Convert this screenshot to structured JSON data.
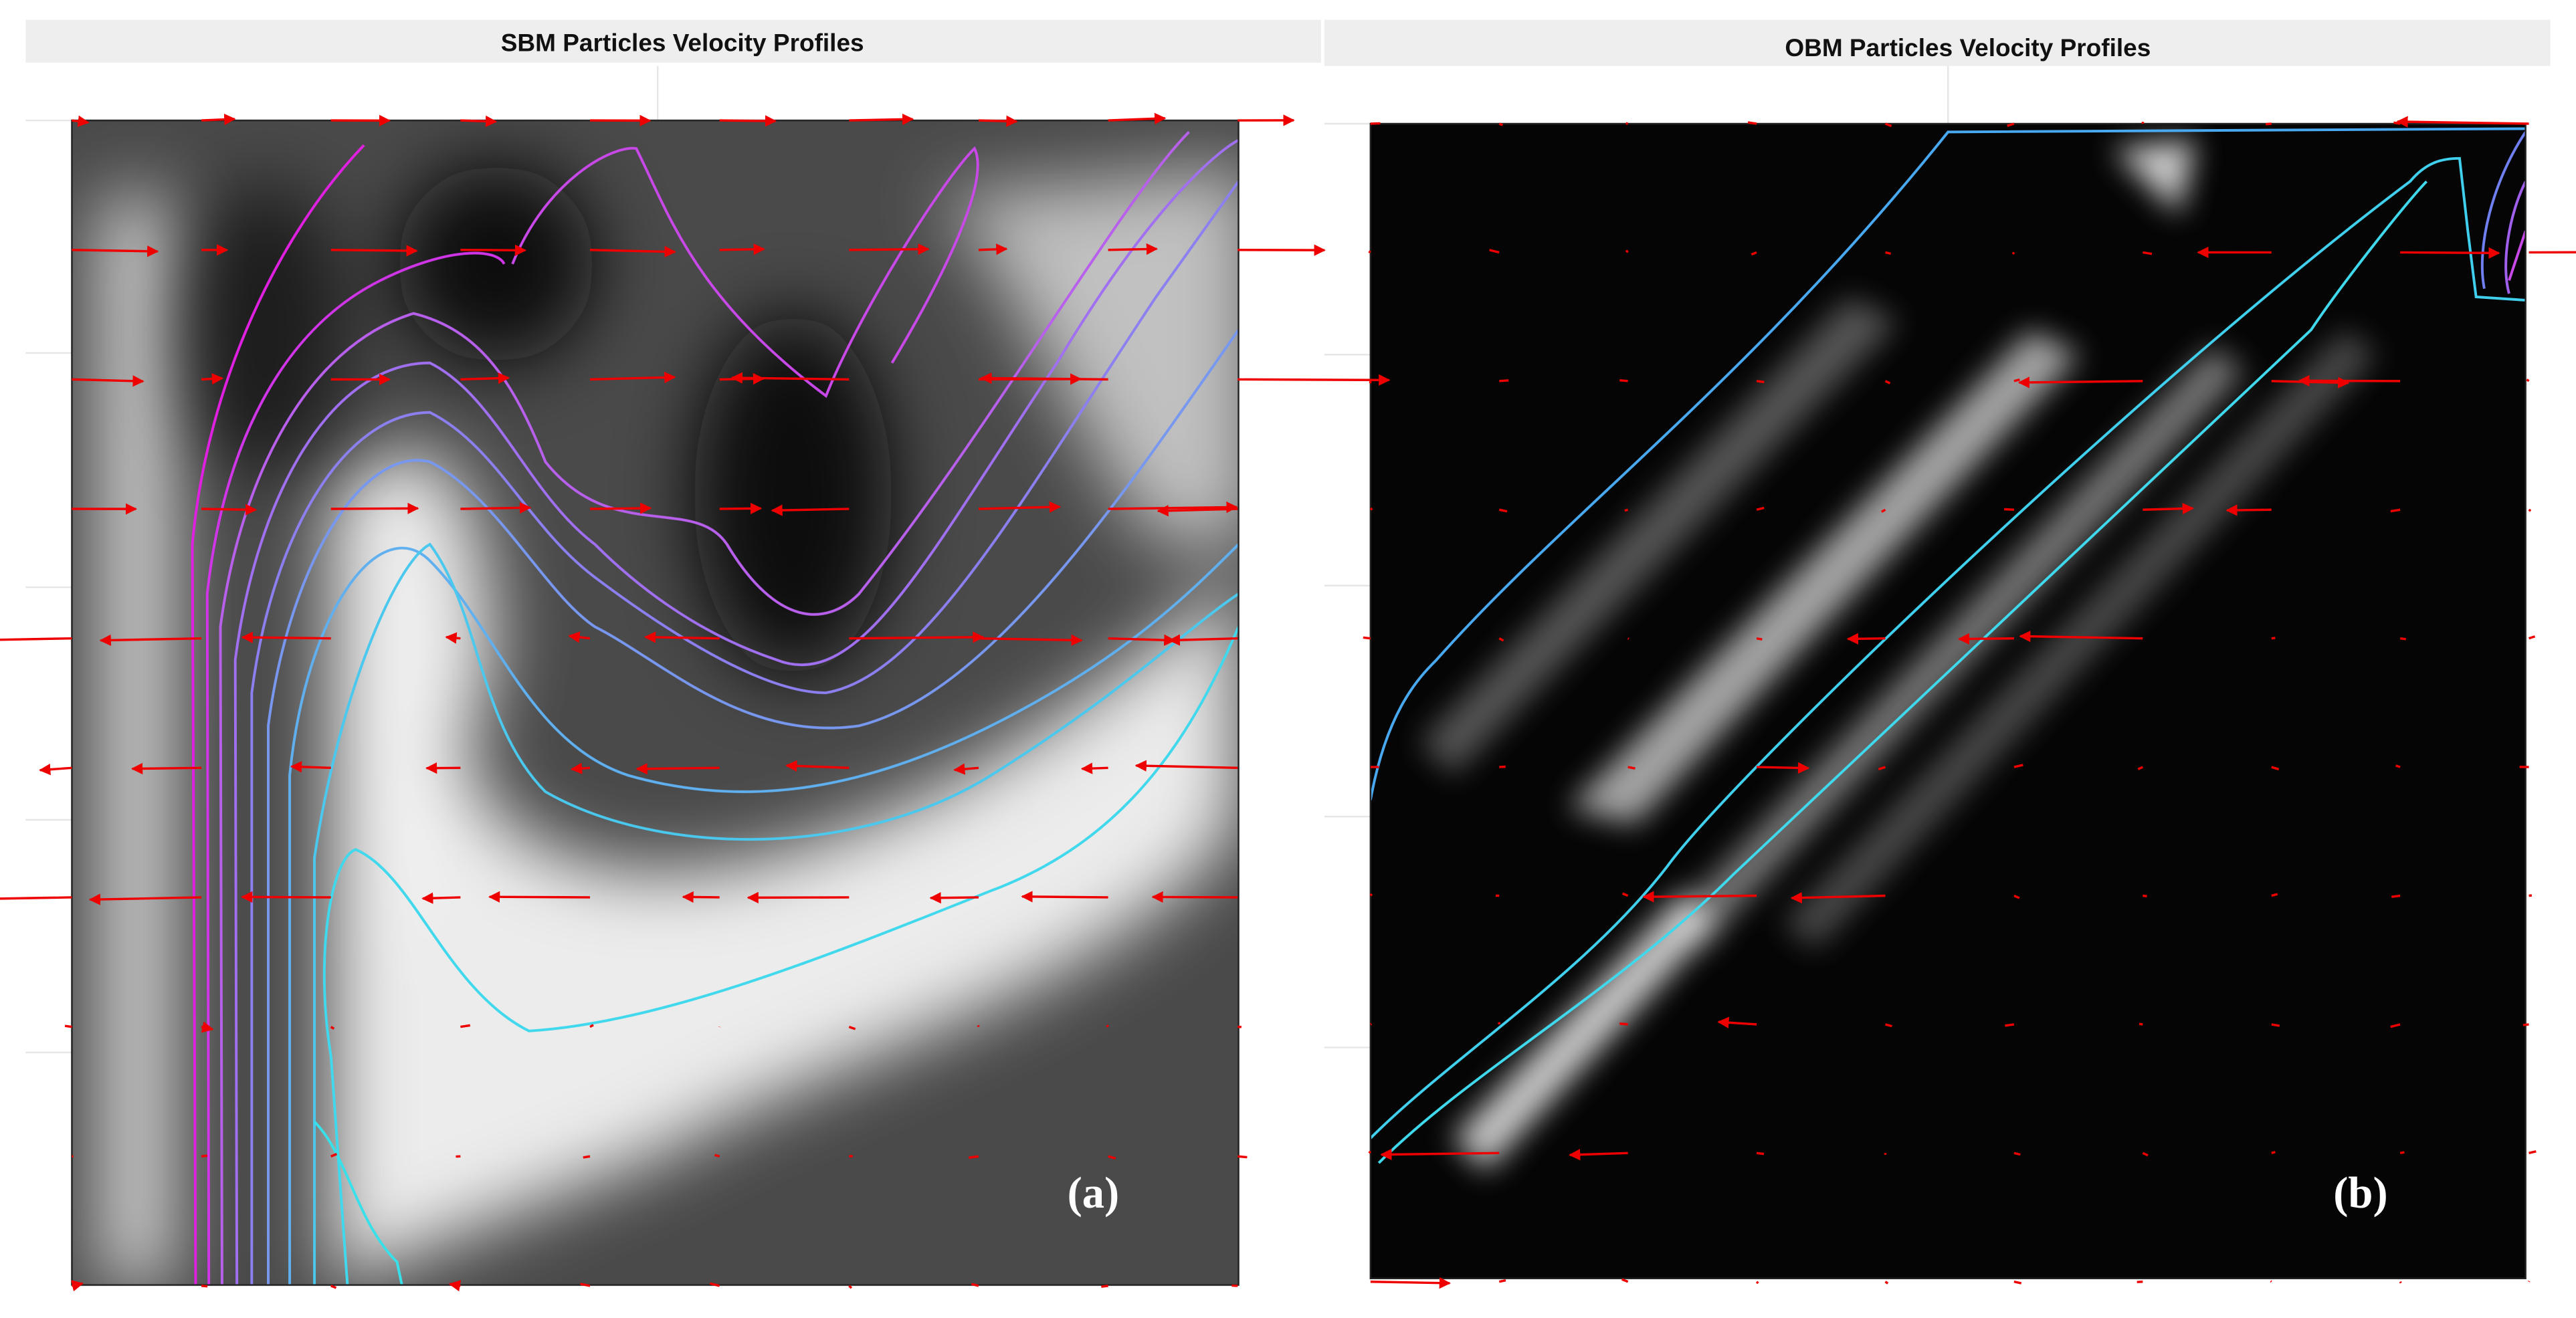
{
  "panels": [
    {
      "title": "SBM Particles Velocity Profiles",
      "label": "(a)"
    },
    {
      "title": "OBM Particles Velocity Profiles",
      "label": "(b)"
    }
  ]
}
